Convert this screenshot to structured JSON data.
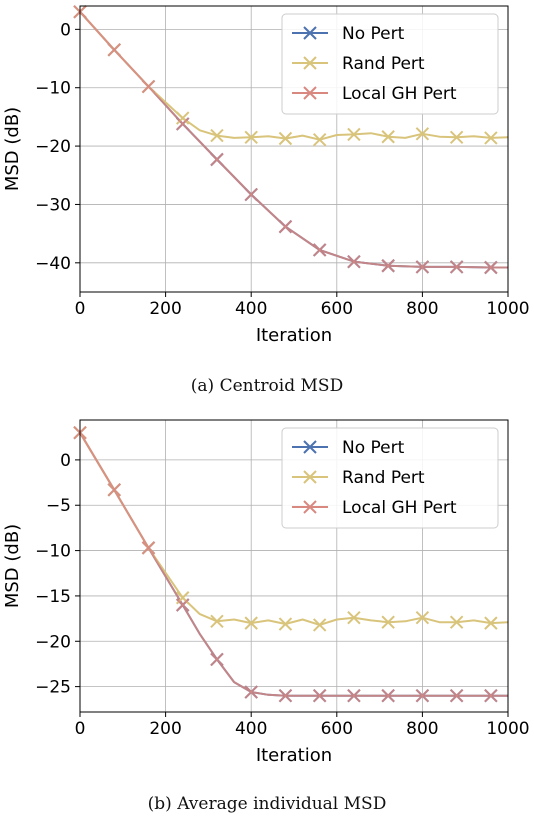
{
  "chart_data": [
    {
      "type": "line",
      "caption": "(a) Centroid MSD",
      "xlabel": "Iteration",
      "ylabel": "MSD (dB)",
      "xlim": [
        0,
        1000
      ],
      "ylim": [
        -45,
        4
      ],
      "xticks": [
        0,
        200,
        400,
        600,
        800,
        1000
      ],
      "yticks": [
        0,
        -10,
        -20,
        -30,
        -40
      ],
      "grid": true,
      "legend": "top-right",
      "series": [
        {
          "name": "No Pert",
          "color": "#4c72b0",
          "x": [
            0,
            80,
            160,
            240,
            320,
            400,
            480,
            560,
            640,
            720,
            800,
            880,
            960,
            1000
          ],
          "y": [
            3,
            -3.5,
            -9.8,
            -16.2,
            -22.3,
            -28.3,
            -33.8,
            -37.8,
            -39.8,
            -40.5,
            -40.7,
            -40.7,
            -40.8,
            -40.8
          ]
        },
        {
          "name": "Rand Pert",
          "color": "#d9c47c",
          "x": [
            0,
            80,
            160,
            240,
            280,
            320,
            360,
            400,
            440,
            480,
            520,
            560,
            600,
            640,
            680,
            720,
            760,
            800,
            840,
            880,
            920,
            960,
            1000
          ],
          "y": [
            3,
            -3.5,
            -9.8,
            -15.2,
            -17.3,
            -18.2,
            -18.6,
            -18.5,
            -18.3,
            -18.7,
            -18.2,
            -18.9,
            -18.1,
            -18.0,
            -17.8,
            -18.4,
            -18.6,
            -17.9,
            -18.4,
            -18.5,
            -18.3,
            -18.6,
            -18.5
          ]
        },
        {
          "name": "Local GH Pert",
          "color": "#d98880",
          "x": [
            0,
            80,
            160,
            240,
            320,
            400,
            480,
            560,
            640,
            720,
            800,
            880,
            960,
            1000
          ],
          "y": [
            3,
            -3.5,
            -9.8,
            -16.2,
            -22.3,
            -28.3,
            -33.8,
            -37.8,
            -39.8,
            -40.5,
            -40.7,
            -40.7,
            -40.8,
            -40.8
          ]
        }
      ]
    },
    {
      "type": "line",
      "caption": "(b) Average individual MSD",
      "xlabel": "Iteration",
      "ylabel": "MSD (dB)",
      "xlim": [
        0,
        1000
      ],
      "ylim": [
        -27.8,
        4.4
      ],
      "xticks": [
        0,
        200,
        400,
        600,
        800,
        1000
      ],
      "yticks": [
        0,
        -5,
        -10,
        -15,
        -20,
        -25
      ],
      "grid": true,
      "legend": "top-right",
      "series": [
        {
          "name": "No Pert",
          "color": "#4c72b0",
          "x": [
            0,
            80,
            160,
            240,
            280,
            320,
            360,
            400,
            440,
            480,
            560,
            640,
            720,
            800,
            880,
            960,
            1000
          ],
          "y": [
            3,
            -3.3,
            -9.7,
            -16.0,
            -19.2,
            -22.0,
            -24.5,
            -25.6,
            -25.9,
            -26.0,
            -26.0,
            -26.0,
            -26.0,
            -26.0,
            -26.0,
            -26.0,
            -26.0
          ]
        },
        {
          "name": "Rand Pert",
          "color": "#d9c47c",
          "x": [
            0,
            80,
            160,
            240,
            280,
            320,
            360,
            400,
            440,
            480,
            520,
            560,
            600,
            640,
            680,
            720,
            760,
            800,
            840,
            880,
            920,
            960,
            1000
          ],
          "y": [
            3,
            -3.3,
            -9.7,
            -15.2,
            -17.0,
            -17.8,
            -17.6,
            -18.0,
            -17.7,
            -18.1,
            -17.6,
            -18.2,
            -17.6,
            -17.4,
            -17.7,
            -17.9,
            -17.8,
            -17.4,
            -17.9,
            -17.9,
            -17.7,
            -18.0,
            -17.9
          ]
        },
        {
          "name": "Local GH Pert",
          "color": "#d98880",
          "x": [
            0,
            80,
            160,
            240,
            280,
            320,
            360,
            400,
            440,
            480,
            560,
            640,
            720,
            800,
            880,
            960,
            1000
          ],
          "y": [
            3,
            -3.3,
            -9.7,
            -16.0,
            -19.2,
            -22.0,
            -24.5,
            -25.6,
            -25.9,
            -26.0,
            -26.0,
            -26.0,
            -26.0,
            -26.0,
            -26.0,
            -26.0,
            -26.0
          ]
        }
      ]
    }
  ]
}
